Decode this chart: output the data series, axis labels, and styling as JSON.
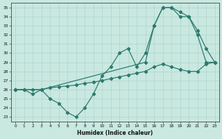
{
  "xlabel": "Humidex (Indice chaleur)",
  "bg_color": "#c8e8e0",
  "grid_color": "#b0d4cc",
  "line_color": "#2d7a6e",
  "xlim": [
    -0.5,
    23.5
  ],
  "ylim": [
    22.5,
    35.5
  ],
  "xticks": [
    0,
    1,
    2,
    3,
    4,
    5,
    6,
    7,
    8,
    9,
    10,
    11,
    12,
    13,
    14,
    15,
    16,
    17,
    18,
    19,
    20,
    21,
    22,
    23
  ],
  "yticks": [
    23,
    24,
    25,
    26,
    27,
    28,
    29,
    30,
    31,
    32,
    33,
    34,
    35
  ],
  "line1_wavy": {
    "x": [
      0,
      1,
      2,
      3,
      4,
      5,
      6,
      7,
      8,
      9,
      10,
      11,
      12,
      13,
      14,
      15,
      16,
      17,
      18,
      19,
      20,
      21,
      22,
      23
    ],
    "y": [
      26,
      26,
      25.5,
      26,
      25,
      24.5,
      23.5,
      23,
      24,
      25.5,
      27.5,
      28.5,
      30,
      30.5,
      28.5,
      30,
      33,
      35,
      35,
      34,
      34,
      32,
      29,
      29
    ]
  },
  "line2_straight": {
    "x": [
      0,
      1,
      2,
      3,
      4,
      5,
      6,
      7,
      8,
      9,
      10,
      11,
      12,
      13,
      14,
      15,
      16,
      17,
      18,
      19,
      20,
      21,
      22,
      23
    ],
    "y": [
      26,
      26,
      26,
      26,
      26.2,
      26.3,
      26.4,
      26.5,
      26.7,
      26.8,
      27,
      27.2,
      27.4,
      27.6,
      27.8,
      28,
      28.5,
      28.8,
      28.5,
      28.2,
      28,
      28,
      28.8,
      29
    ]
  },
  "line3_steep": {
    "x": [
      0,
      3,
      15,
      16,
      17,
      18,
      19,
      20,
      21,
      22,
      23
    ],
    "y": [
      26,
      26,
      29,
      33,
      35,
      35,
      34.5,
      34,
      32.5,
      30.5,
      29
    ]
  }
}
